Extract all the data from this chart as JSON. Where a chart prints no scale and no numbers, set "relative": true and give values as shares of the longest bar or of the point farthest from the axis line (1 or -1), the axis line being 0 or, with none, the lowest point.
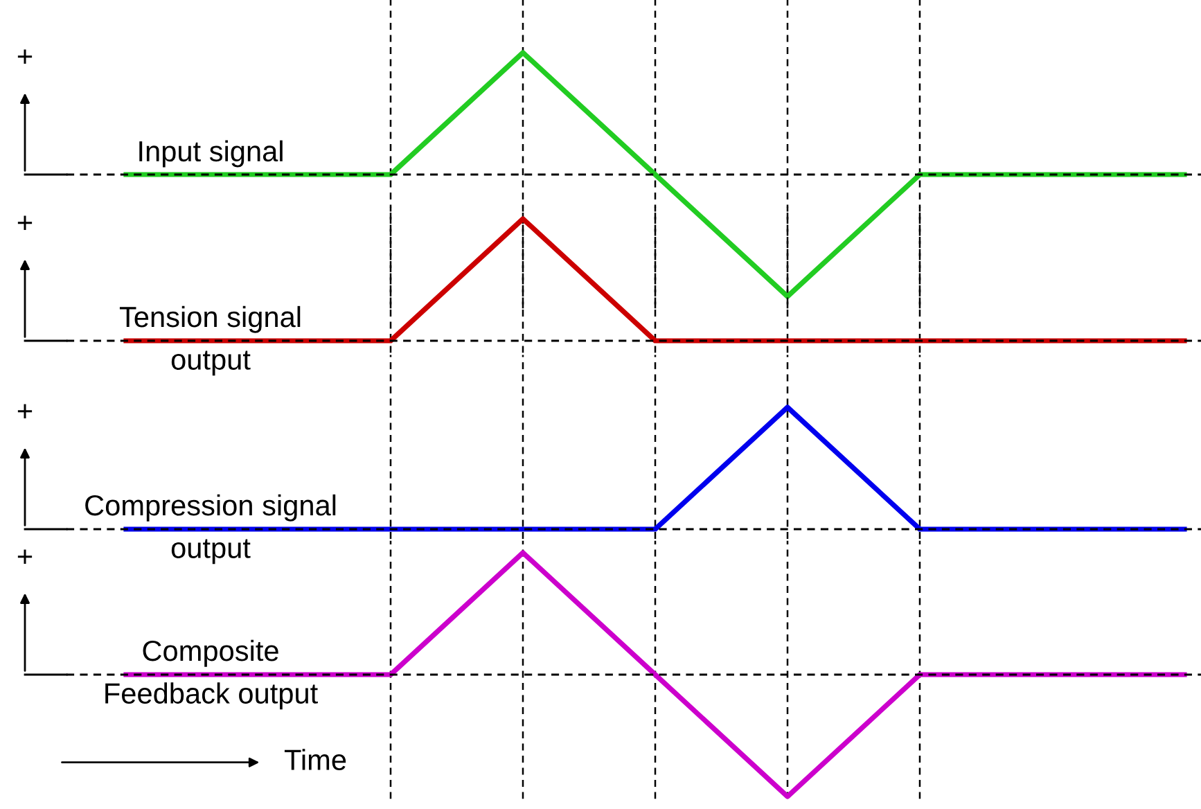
{
  "chart_data": [
    {
      "type": "line",
      "relative": true,
      "grid": "x",
      "categories": [
        null,
        null,
        null,
        null,
        null,
        null,
        null,
        null,
        null
      ],
      "series": [
        {
          "name": "Input signal",
          "color": "#22cc22",
          "values": [
            0,
            0,
            0,
            1,
            0,
            -1,
            0,
            0,
            0
          ]
        }
      ],
      "ref_lines": [
        {
          "axis": "y",
          "value": 0,
          "line_style": "dashed",
          "color": "#000000"
        }
      ],
      "annotations": [
        "+"
      ]
    },
    {
      "type": "line",
      "relative": true,
      "grid": "x",
      "categories": [
        null,
        null,
        null,
        null,
        null,
        null,
        null,
        null,
        null
      ],
      "series": [
        {
          "name": "Tension signal\noutput",
          "color": "#cc0000",
          "values": [
            0,
            0,
            0,
            1,
            0,
            0,
            0,
            0,
            0
          ]
        }
      ],
      "ref_lines": [
        {
          "axis": "y",
          "value": 0,
          "line_style": "dashed",
          "color": "#000000"
        }
      ],
      "annotations": [
        "+"
      ]
    },
    {
      "type": "line",
      "relative": true,
      "grid": "x",
      "categories": [
        null,
        null,
        null,
        null,
        null,
        null,
        null,
        null,
        null
      ],
      "series": [
        {
          "name": "Compression signal\noutput",
          "color": "#0000ee",
          "values": [
            0,
            0,
            0,
            0,
            0,
            1,
            0,
            0,
            0
          ]
        }
      ],
      "ref_lines": [
        {
          "axis": "y",
          "value": 0,
          "line_style": "dashed",
          "color": "#000000"
        }
      ],
      "annotations": [
        "+"
      ]
    },
    {
      "type": "line",
      "relative": true,
      "grid": "x",
      "categories": [
        null,
        null,
        null,
        null,
        null,
        null,
        null,
        null,
        null
      ],
      "series": [
        {
          "name": "Composite\nFeedback output",
          "color": "#cc00cc",
          "values": [
            0,
            0,
            0,
            1,
            0,
            -1,
            0,
            0,
            0
          ]
        }
      ],
      "ref_lines": [
        {
          "axis": "y",
          "value": 0,
          "line_style": "dashed",
          "color": "#000000"
        }
      ],
      "annotations": [
        "+"
      ],
      "xlabel": "Time"
    }
  ]
}
